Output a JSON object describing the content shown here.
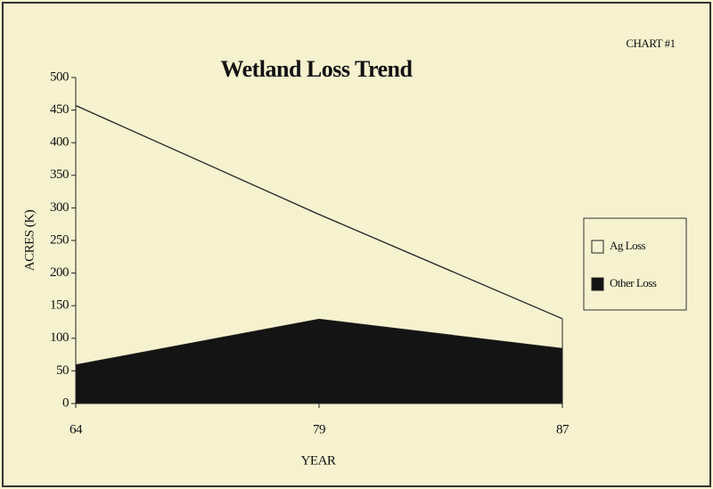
{
  "chart_data": {
    "type": "stacked_area",
    "title": "Wetland Loss Trend",
    "annotation": "CHART #1",
    "x_label": "YEAR",
    "y_label": "ACRES (K)",
    "categories": [
      "64",
      "79",
      "87"
    ],
    "series": [
      {
        "name": "Other Loss",
        "color": "#141414",
        "values": [
          60,
          130,
          85
        ]
      },
      {
        "name": "Ag Loss",
        "color": "#f6f2cf",
        "values": [
          397,
          160,
          45
        ]
      }
    ],
    "legend_items": [
      1,
      0
    ],
    "ylim": [
      0,
      500
    ],
    "yticks": [
      0,
      50,
      100,
      150,
      200,
      250,
      300,
      350,
      400,
      450,
      500
    ]
  }
}
